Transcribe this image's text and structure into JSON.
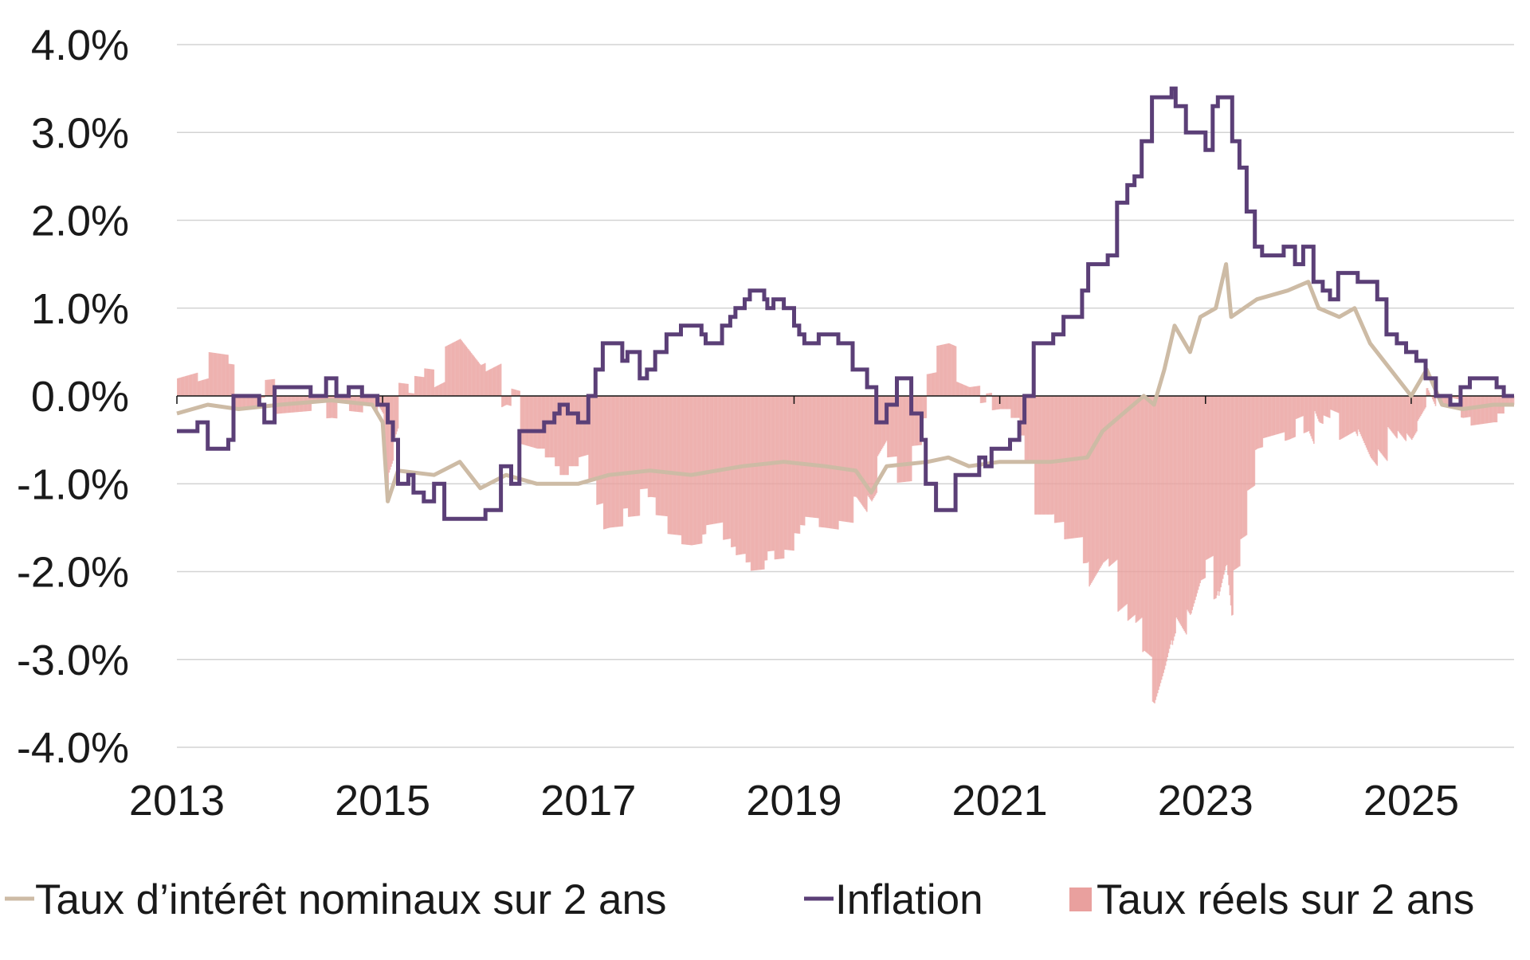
{
  "chart_data": {
    "type": "line",
    "title": "",
    "xlabel": "",
    "ylabel": "",
    "xlim": [
      2013,
      2026
    ],
    "ylim": [
      -4.0,
      4.0
    ],
    "x_ticks": [
      "2013",
      "2015",
      "2017",
      "2019",
      "2021",
      "2023",
      "2025"
    ],
    "y_ticks": [
      "4.0%",
      "3.0%",
      "2.0%",
      "1.0%",
      "0.0%",
      "-1.0%",
      "-2.0%",
      "-3.0%",
      "-4.0%"
    ],
    "grid": "horizontal",
    "legend_position": "bottom",
    "series": [
      {
        "name": "Taux d’intérêt nominaux sur 2 ans",
        "kind": "line",
        "color": "#cdbba5",
        "points": [
          [
            2013.0,
            -0.2
          ],
          [
            2013.3,
            -0.1
          ],
          [
            2013.6,
            -0.15
          ],
          [
            2014.0,
            -0.1
          ],
          [
            2014.5,
            -0.05
          ],
          [
            2014.9,
            -0.1
          ],
          [
            2015.0,
            -0.3
          ],
          [
            2015.05,
            -1.2
          ],
          [
            2015.15,
            -0.85
          ],
          [
            2015.5,
            -0.9
          ],
          [
            2015.75,
            -0.75
          ],
          [
            2015.95,
            -1.05
          ],
          [
            2016.2,
            -0.9
          ],
          [
            2016.5,
            -1.0
          ],
          [
            2016.9,
            -1.0
          ],
          [
            2017.2,
            -0.9
          ],
          [
            2017.6,
            -0.85
          ],
          [
            2018.0,
            -0.9
          ],
          [
            2018.5,
            -0.8
          ],
          [
            2018.9,
            -0.75
          ],
          [
            2019.3,
            -0.8
          ],
          [
            2019.6,
            -0.85
          ],
          [
            2019.75,
            -1.1
          ],
          [
            2019.9,
            -0.8
          ],
          [
            2020.3,
            -0.75
          ],
          [
            2020.5,
            -0.7
          ],
          [
            2020.7,
            -0.8
          ],
          [
            2021.0,
            -0.75
          ],
          [
            2021.5,
            -0.75
          ],
          [
            2021.85,
            -0.7
          ],
          [
            2022.0,
            -0.4
          ],
          [
            2022.2,
            -0.2
          ],
          [
            2022.4,
            0.0
          ],
          [
            2022.5,
            -0.1
          ],
          [
            2022.6,
            0.3
          ],
          [
            2022.7,
            0.8
          ],
          [
            2022.85,
            0.5
          ],
          [
            2022.95,
            0.9
          ],
          [
            2023.1,
            1.0
          ],
          [
            2023.2,
            1.5
          ],
          [
            2023.25,
            0.9
          ],
          [
            2023.5,
            1.1
          ],
          [
            2023.8,
            1.2
          ],
          [
            2024.0,
            1.3
          ],
          [
            2024.1,
            1.0
          ],
          [
            2024.3,
            0.9
          ],
          [
            2024.45,
            1.0
          ],
          [
            2024.6,
            0.6
          ],
          [
            2024.8,
            0.3
          ],
          [
            2025.0,
            0.0
          ],
          [
            2025.15,
            0.3
          ],
          [
            2025.3,
            -0.1
          ],
          [
            2025.5,
            -0.15
          ],
          [
            2025.8,
            -0.1
          ],
          [
            2026.0,
            -0.1
          ]
        ]
      },
      {
        "name": "Inflation",
        "kind": "step",
        "color": "#5b3f77",
        "points": [
          [
            2013.0,
            -0.4
          ],
          [
            2013.2,
            -0.3
          ],
          [
            2013.3,
            -0.6
          ],
          [
            2013.5,
            -0.5
          ],
          [
            2013.55,
            0.0
          ],
          [
            2013.8,
            -0.1
          ],
          [
            2013.85,
            -0.3
          ],
          [
            2013.95,
            0.1
          ],
          [
            2014.3,
            0.0
          ],
          [
            2014.45,
            0.2
          ],
          [
            2014.55,
            0.0
          ],
          [
            2014.67,
            0.1
          ],
          [
            2014.8,
            0.0
          ],
          [
            2014.95,
            -0.1
          ],
          [
            2015.05,
            -0.3
          ],
          [
            2015.1,
            -0.5
          ],
          [
            2015.15,
            -1.0
          ],
          [
            2015.25,
            -0.9
          ],
          [
            2015.3,
            -1.1
          ],
          [
            2015.4,
            -1.2
          ],
          [
            2015.5,
            -1.0
          ],
          [
            2015.6,
            -1.4
          ],
          [
            2016.0,
            -1.3
          ],
          [
            2016.15,
            -0.8
          ],
          [
            2016.25,
            -1.0
          ],
          [
            2016.33,
            -0.4
          ],
          [
            2016.57,
            -0.3
          ],
          [
            2016.67,
            -0.2
          ],
          [
            2016.72,
            -0.1
          ],
          [
            2016.8,
            -0.2
          ],
          [
            2016.9,
            -0.3
          ],
          [
            2017.0,
            0.0
          ],
          [
            2017.07,
            0.3
          ],
          [
            2017.14,
            0.6
          ],
          [
            2017.33,
            0.4
          ],
          [
            2017.38,
            0.5
          ],
          [
            2017.5,
            0.2
          ],
          [
            2017.57,
            0.3
          ],
          [
            2017.65,
            0.5
          ],
          [
            2017.76,
            0.7
          ],
          [
            2017.9,
            0.8
          ],
          [
            2018.1,
            0.7
          ],
          [
            2018.14,
            0.6
          ],
          [
            2018.3,
            0.8
          ],
          [
            2018.38,
            0.9
          ],
          [
            2018.43,
            1.0
          ],
          [
            2018.52,
            1.1
          ],
          [
            2018.57,
            1.2
          ],
          [
            2018.71,
            1.1
          ],
          [
            2018.74,
            1.0
          ],
          [
            2018.8,
            1.1
          ],
          [
            2018.9,
            1.0
          ],
          [
            2019.0,
            0.8
          ],
          [
            2019.05,
            0.7
          ],
          [
            2019.1,
            0.6
          ],
          [
            2019.24,
            0.7
          ],
          [
            2019.43,
            0.6
          ],
          [
            2019.57,
            0.3
          ],
          [
            2019.71,
            0.1
          ],
          [
            2019.8,
            -0.3
          ],
          [
            2019.9,
            -0.1
          ],
          [
            2020.0,
            0.2
          ],
          [
            2020.14,
            -0.2
          ],
          [
            2020.24,
            -0.5
          ],
          [
            2020.28,
            -1.0
          ],
          [
            2020.38,
            -1.3
          ],
          [
            2020.57,
            -0.9
          ],
          [
            2020.8,
            -0.7
          ],
          [
            2020.86,
            -0.8
          ],
          [
            2020.92,
            -0.6
          ],
          [
            2021.1,
            -0.5
          ],
          [
            2021.19,
            -0.3
          ],
          [
            2021.24,
            0.0
          ],
          [
            2021.33,
            0.6
          ],
          [
            2021.52,
            0.7
          ],
          [
            2021.62,
            0.9
          ],
          [
            2021.8,
            1.2
          ],
          [
            2021.86,
            1.5
          ],
          [
            2022.05,
            1.6
          ],
          [
            2022.14,
            2.2
          ],
          [
            2022.24,
            2.4
          ],
          [
            2022.31,
            2.5
          ],
          [
            2022.38,
            2.9
          ],
          [
            2022.48,
            3.4
          ],
          [
            2022.67,
            3.5
          ],
          [
            2022.71,
            3.3
          ],
          [
            2022.81,
            3.0
          ],
          [
            2023.0,
            2.8
          ],
          [
            2023.07,
            3.3
          ],
          [
            2023.12,
            3.4
          ],
          [
            2023.26,
            2.9
          ],
          [
            2023.33,
            2.6
          ],
          [
            2023.4,
            2.1
          ],
          [
            2023.48,
            1.7
          ],
          [
            2023.55,
            1.6
          ],
          [
            2023.76,
            1.7
          ],
          [
            2023.87,
            1.5
          ],
          [
            2023.95,
            1.7
          ],
          [
            2024.05,
            1.3
          ],
          [
            2024.14,
            1.2
          ],
          [
            2024.21,
            1.1
          ],
          [
            2024.29,
            1.4
          ],
          [
            2024.48,
            1.3
          ],
          [
            2024.67,
            1.1
          ],
          [
            2024.76,
            0.7
          ],
          [
            2024.86,
            0.6
          ],
          [
            2024.95,
            0.5
          ],
          [
            2025.05,
            0.4
          ],
          [
            2025.14,
            0.2
          ],
          [
            2025.24,
            0.0
          ],
          [
            2025.38,
            -0.1
          ],
          [
            2025.48,
            0.1
          ],
          [
            2025.57,
            0.2
          ],
          [
            2025.83,
            0.1
          ],
          [
            2025.9,
            0.0
          ],
          [
            2026.0,
            0.0
          ]
        ]
      },
      {
        "name": "Taux réels sur 2 ans",
        "kind": "bar",
        "color": "#e9a09e"
      }
    ]
  }
}
